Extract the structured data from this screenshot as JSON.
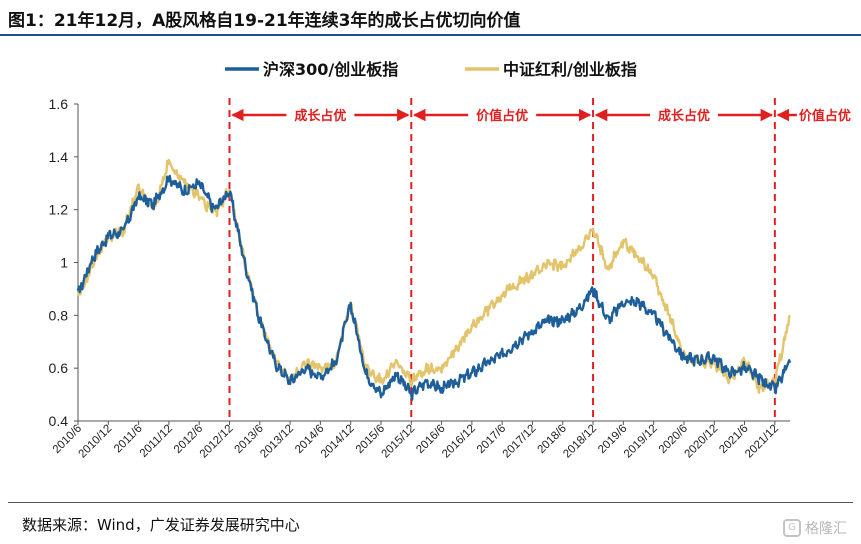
{
  "title": "图1：21年12月，A股风格自19-21年连续3年的成长占优切向价值",
  "source": "数据来源：Wind，广发证券发展研究中心",
  "watermark": "格隆汇",
  "chart_data": {
    "type": "line",
    "title": "图1：21年12月，A股风格自19-21年连续3年的成长占优切向价值",
    "xlabel": "",
    "ylabel": "",
    "ylim": [
      0.4,
      1.6
    ],
    "yticks": [
      "0.4",
      "0.6",
      "0.8",
      "1",
      "1.2",
      "1.4",
      "1.6"
    ],
    "xticks": [
      "2010/6",
      "2010/12",
      "2011/6",
      "2011/12",
      "2012/6",
      "2012/12",
      "2013/6",
      "2013/12",
      "2014/6",
      "2014/12",
      "2015/6",
      "2015/12",
      "2016/6",
      "2016/12",
      "2017/6",
      "2017/12",
      "2018/6",
      "2018/12",
      "2019/6",
      "2019/12",
      "2020/6",
      "2020/12",
      "2021/6",
      "2021/12"
    ],
    "xrange": [
      "2010/6",
      "2022/3"
    ],
    "grid": false,
    "legend_position": "top",
    "series": [
      {
        "name": "沪深300/创业板指",
        "color": "#1f5f99",
        "x": [
          "2010/6",
          "2010/9",
          "2010/12",
          "2011/3",
          "2011/6",
          "2011/9",
          "2011/12",
          "2012/3",
          "2012/6",
          "2012/9",
          "2012/12",
          "2013/3",
          "2013/6",
          "2013/9",
          "2013/12",
          "2014/3",
          "2014/6",
          "2014/9",
          "2014/12",
          "2015/3",
          "2015/6",
          "2015/9",
          "2015/12",
          "2016/3",
          "2016/6",
          "2016/9",
          "2016/12",
          "2017/3",
          "2017/6",
          "2017/9",
          "2017/12",
          "2018/3",
          "2018/6",
          "2018/9",
          "2018/12",
          "2019/3",
          "2019/6",
          "2019/9",
          "2019/12",
          "2020/3",
          "2020/6",
          "2020/9",
          "2020/12",
          "2021/3",
          "2021/6",
          "2021/9",
          "2021/12",
          "2022/3"
        ],
        "values": [
          0.88,
          1.02,
          1.1,
          1.12,
          1.25,
          1.22,
          1.32,
          1.27,
          1.3,
          1.2,
          1.27,
          1.0,
          0.78,
          0.62,
          0.55,
          0.6,
          0.57,
          0.62,
          0.84,
          0.58,
          0.5,
          0.58,
          0.5,
          0.55,
          0.52,
          0.55,
          0.58,
          0.62,
          0.65,
          0.7,
          0.74,
          0.78,
          0.78,
          0.82,
          0.9,
          0.78,
          0.85,
          0.85,
          0.8,
          0.72,
          0.64,
          0.63,
          0.64,
          0.58,
          0.6,
          0.56,
          0.52,
          0.62
        ]
      },
      {
        "name": "中证红利/创业板指",
        "color": "#e3c46b",
        "x": [
          "2010/6",
          "2010/9",
          "2010/12",
          "2011/3",
          "2011/6",
          "2011/9",
          "2011/12",
          "2012/3",
          "2012/6",
          "2012/9",
          "2012/12",
          "2013/3",
          "2013/6",
          "2013/9",
          "2013/12",
          "2014/3",
          "2014/6",
          "2014/9",
          "2014/12",
          "2015/3",
          "2015/6",
          "2015/9",
          "2015/12",
          "2016/3",
          "2016/6",
          "2016/9",
          "2016/12",
          "2017/3",
          "2017/6",
          "2017/9",
          "2017/12",
          "2018/3",
          "2018/6",
          "2018/9",
          "2018/12",
          "2019/3",
          "2019/6",
          "2019/9",
          "2019/12",
          "2020/3",
          "2020/6",
          "2020/9",
          "2020/12",
          "2021/3",
          "2021/6",
          "2021/9",
          "2021/12",
          "2022/3"
        ],
        "values": [
          0.86,
          1.0,
          1.1,
          1.12,
          1.28,
          1.2,
          1.38,
          1.3,
          1.25,
          1.18,
          1.28,
          1.0,
          0.78,
          0.63,
          0.55,
          0.62,
          0.6,
          0.62,
          0.85,
          0.6,
          0.55,
          0.62,
          0.55,
          0.6,
          0.6,
          0.68,
          0.75,
          0.82,
          0.88,
          0.92,
          0.95,
          1.0,
          0.98,
          1.05,
          1.12,
          0.98,
          1.08,
          1.02,
          0.95,
          0.8,
          0.65,
          0.62,
          0.62,
          0.56,
          0.63,
          0.52,
          0.55,
          0.8
        ]
      }
    ],
    "annotations": {
      "divider_dates": [
        "2012/12",
        "2015/12",
        "2018/12",
        "2021/12"
      ],
      "labels": [
        {
          "text": "成长占优",
          "from": "2012/12",
          "to": "2015/12"
        },
        {
          "text": "价值占优",
          "from": "2015/12",
          "to": "2018/12"
        },
        {
          "text": "成长占优",
          "from": "2018/12",
          "to": "2021/12"
        },
        {
          "text": "价值占优",
          "from": "2021/12",
          "to": "2022/3"
        }
      ],
      "color": "#e02020"
    }
  }
}
